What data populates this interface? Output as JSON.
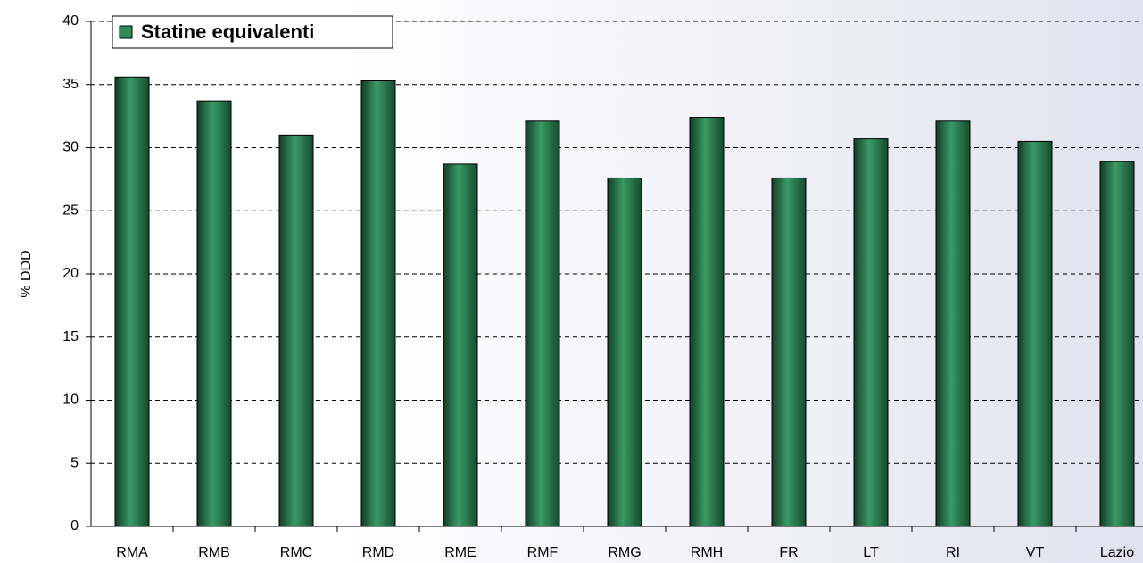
{
  "chart_data": {
    "type": "bar",
    "categories": [
      "RMA",
      "RMB",
      "RMC",
      "RMD",
      "RME",
      "RMF",
      "RMG",
      "RMH",
      "FR",
      "LT",
      "RI",
      "VT",
      "Lazio"
    ],
    "series": [
      {
        "name": "Statine equivalenti",
        "color": "#2e8b57",
        "values": [
          35.6,
          33.7,
          31.0,
          35.3,
          28.7,
          32.1,
          27.6,
          32.4,
          27.6,
          30.7,
          32.1,
          30.5,
          28.9
        ]
      }
    ],
    "ylabel": "% DDD",
    "ylim": [
      0,
      40
    ],
    "yticks": [
      0,
      5,
      10,
      15,
      20,
      25,
      30,
      35,
      40
    ],
    "grid": true,
    "legend": "top-left"
  }
}
